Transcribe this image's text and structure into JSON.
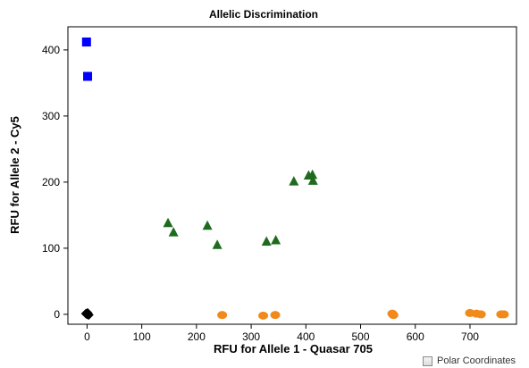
{
  "chart_data": {
    "type": "scatter",
    "title": "Allelic Discrimination",
    "xlabel": "RFU for Allele 1 - Quasar 705",
    "ylabel": "RFU for Allele 2 - Cy5",
    "xlim": [
      -35,
      785
    ],
    "ylim": [
      -15,
      435
    ],
    "xticks": [
      0,
      100,
      200,
      300,
      400,
      500,
      600,
      700
    ],
    "yticks": [
      0,
      100,
      200,
      300,
      400
    ],
    "grid": false,
    "legend": "none",
    "series": [
      {
        "marker": "square",
        "color": "#0000ff",
        "points": [
          [
            -1,
            412
          ],
          [
            1,
            360
          ]
        ]
      },
      {
        "marker": "triangle",
        "color": "#1e6b1e",
        "points": [
          [
            148,
            138
          ],
          [
            158,
            124
          ],
          [
            220,
            134
          ],
          [
            238,
            105
          ],
          [
            328,
            110
          ],
          [
            345,
            112
          ],
          [
            378,
            201
          ],
          [
            405,
            210
          ],
          [
            412,
            211
          ],
          [
            413,
            202
          ]
        ]
      },
      {
        "marker": "circle",
        "color": "#f28a1b",
        "points": [
          [
            247,
            -1
          ],
          [
            322,
            -2
          ],
          [
            344,
            -1
          ],
          [
            558,
            1
          ],
          [
            560,
            -1
          ],
          [
            700,
            2
          ],
          [
            712,
            1
          ],
          [
            720,
            0
          ],
          [
            757,
            0
          ],
          [
            762,
            0
          ]
        ]
      },
      {
        "marker": "diamond",
        "color": "#000000",
        "points": [
          [
            -2,
            1
          ],
          [
            0,
            0
          ],
          [
            1,
            2
          ],
          [
            3,
            -1
          ],
          [
            2,
            0
          ]
        ]
      }
    ]
  },
  "controls": {
    "polar_coordinates_label": "Polar Coordinates",
    "polar_coordinates_checked": false
  }
}
